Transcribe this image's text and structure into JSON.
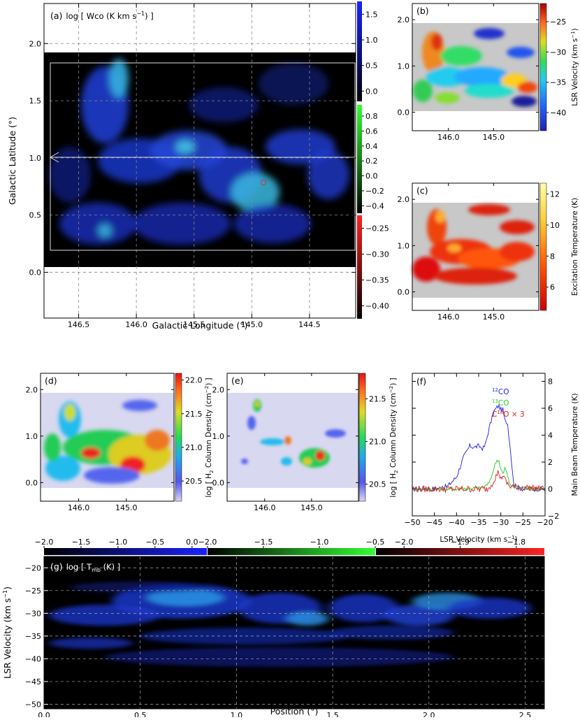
{
  "panel_a": {
    "label": "(a)",
    "quantity": "log [ Wco (K km s",
    "unit_sup": "−1",
    "unit_close": ") ]",
    "xlabel": "Galactic Longitude (°)",
    "ylabel": "Galactic Latitude (°)",
    "xticks": [
      "146.5",
      "146.0",
      "145.5",
      "145.0",
      "144.5"
    ],
    "yticks": [
      "0.0",
      "0.5",
      "1.0",
      "1.5",
      "2.0"
    ],
    "cbar_blue": [
      "1.5",
      "1.0",
      "0.5",
      "0.0"
    ],
    "cbar_green": [
      "0.8",
      "0.6",
      "0.4",
      "0.2",
      "0.0",
      "−0.2",
      "−0.4"
    ],
    "cbar_red": [
      "−0.25",
      "−0.30",
      "−0.35",
      "−0.40"
    ]
  },
  "panel_b": {
    "label": "(b)",
    "cbar_title": "LSR Velocity (km s",
    "cbar_title_sup": "−1",
    "cbar_title_close": ")",
    "cbar_ticks": [
      "−25",
      "−30",
      "−35",
      "−40"
    ],
    "xticks": [
      "146.0",
      "145.0"
    ],
    "yticks": [
      "0.0",
      "1.0",
      "2.0"
    ]
  },
  "panel_c": {
    "label": "(c)",
    "cbar_title": "Excitation Temperature (K)",
    "cbar_ticks": [
      "12",
      "10",
      "8",
      "6"
    ],
    "xticks": [
      "146.0",
      "145.0"
    ],
    "yticks": [
      "0.0",
      "1.0",
      "2.0"
    ]
  },
  "panel_d": {
    "label": "(d)",
    "cbar_title_pre": "log [ H",
    "cbar_title_sub": "2",
    "cbar_title_mid": " Column Density (cm",
    "cbar_title_sup": "−2",
    "cbar_title_close": ") ]",
    "cbar_ticks": [
      "22.0",
      "21.5",
      "21.0",
      "20.5"
    ],
    "xticks": [
      "146.0",
      "145.0"
    ],
    "yticks": [
      "0.0",
      "1.0",
      "2.0"
    ]
  },
  "panel_e": {
    "label": "(e)",
    "cbar_title_pre": "log [ H",
    "cbar_title_sub": "2",
    "cbar_title_mid": " Column Density (cm",
    "cbar_title_sup": "−2",
    "cbar_title_close": ") ]",
    "cbar_ticks": [
      "21.5",
      "21.0",
      "20.5"
    ],
    "xticks": [
      "146.0",
      "145.0"
    ],
    "yticks": [
      "0.0",
      "1.0",
      "2.0"
    ]
  },
  "panel_f": {
    "label": "(f)",
    "legend": [
      {
        "sup": "12",
        "name": "CO",
        "color": "#1f1fe0"
      },
      {
        "sup": "13",
        "name": "CO",
        "color": "#22cc22"
      },
      {
        "pre": "C",
        "sup": "18",
        "name": "O × 3",
        "color": "#e01f1f"
      }
    ],
    "xlabel": "LSR Velocity (km s",
    "xlabel_sup": "−1",
    "xlabel_close": ")",
    "ylabel": "Main Beam Temperature (K)",
    "xticks": [
      "−50",
      "−45",
      "−40",
      "−35",
      "−30",
      "−25",
      "−20"
    ],
    "yticks": [
      "−2",
      "0",
      "2",
      "4",
      "6",
      "8"
    ]
  },
  "panel_g": {
    "label": "(g)",
    "quantity_pre": "log [ T",
    "quantity_sub": "mb",
    "quantity_close": " (K) ]",
    "ylabel": "LSR Velocity (km s",
    "ylabel_sup": "−1",
    "ylabel_close": ")",
    "xlabel": "Position (°)",
    "xticks": [
      "0.0",
      "0.5",
      "1.0",
      "1.5",
      "2.0",
      "2.5"
    ],
    "yticks": [
      "−20",
      "−25",
      "−30",
      "−35",
      "−40",
      "−45",
      "−50"
    ],
    "cbar_blue": [
      "−2.0",
      "−1.5",
      "−1.0",
      "−0.5",
      "0.0"
    ],
    "cbar_green": [
      "−2.0",
      "−1.5",
      "−1.0",
      "−0.5"
    ],
    "cbar_red": [
      "−2.0",
      "−1.9",
      "−1.8"
    ]
  },
  "chart_data": [
    {
      "type": "heatmap",
      "panel": "a",
      "x_range": [
        146.8,
        144.1
      ],
      "y_range": [
        -0.4,
        2.35
      ],
      "data_coverage_lat": [
        0.05,
        1.88
      ],
      "box": {
        "l": [
          146.75,
          144.1
        ],
        "b": [
          0.1,
          1.82
        ]
      },
      "strip_lat": 1.0,
      "marker": {
        "l": 144.87,
        "b": 0.78
      }
    },
    {
      "type": "heatmap",
      "panel": "b",
      "x_range": [
        146.8,
        144.0
      ],
      "y_range": [
        -0.4,
        2.35
      ],
      "color_range": [
        -43,
        -22
      ]
    },
    {
      "type": "heatmap",
      "panel": "c",
      "x_range": [
        146.8,
        144.0
      ],
      "y_range": [
        -0.4,
        2.35
      ],
      "color_range": [
        4.5,
        12.7
      ]
    },
    {
      "type": "heatmap",
      "panel": "d",
      "x_range": [
        146.8,
        144.0
      ],
      "y_range": [
        -0.4,
        2.35
      ],
      "color_range": [
        20.2,
        22.1
      ]
    },
    {
      "type": "heatmap",
      "panel": "e",
      "x_range": [
        146.8,
        144.0
      ],
      "y_range": [
        -0.4,
        2.35
      ],
      "color_range": [
        20.3,
        21.8
      ]
    },
    {
      "type": "line",
      "panel": "f",
      "xlim": [
        -50,
        -20
      ],
      "ylim": [
        -2,
        8.6
      ],
      "series": [
        {
          "name": "12CO",
          "x": [
            -50,
            -45,
            -42,
            -40,
            -38.5,
            -37,
            -36,
            -35,
            -34,
            -33.5,
            -32.5,
            -31.5,
            -30.5,
            -30,
            -29.5,
            -29,
            -28.5,
            -28,
            -27.5,
            -27,
            -25,
            -20
          ],
          "values": [
            0,
            0,
            0.2,
            0.9,
            2.3,
            3.2,
            3.1,
            3.2,
            3.0,
            3.3,
            4.7,
            5.8,
            6.2,
            5.9,
            5.9,
            4.9,
            5.0,
            3.5,
            1.8,
            0.2,
            0,
            0
          ]
        },
        {
          "name": "13CO",
          "x": [
            -50,
            -40,
            -34,
            -32.5,
            -31.5,
            -31,
            -30.5,
            -30,
            -29.5,
            -29,
            -28.5,
            -28,
            -27,
            -20
          ],
          "values": [
            0,
            0,
            0.1,
            0.5,
            1.6,
            2.1,
            2.2,
            1.5,
            1.1,
            1.6,
            1.0,
            0.4,
            0.1,
            0
          ]
        },
        {
          "name": "C18O x 3",
          "x": [
            -50,
            -40,
            -33,
            -32,
            -31,
            -30.5,
            -30,
            -29.5,
            -29,
            -28,
            -20
          ],
          "values": [
            0,
            0,
            0,
            0.4,
            1.0,
            1.3,
            0.7,
            1.1,
            0.6,
            0.2,
            0
          ]
        }
      ]
    },
    {
      "type": "heatmap",
      "panel": "g",
      "x_range": [
        0,
        2.6
      ],
      "y_range": [
        -51,
        -17.5
      ],
      "color_blue": [
        -2.0,
        0.2
      ],
      "color_green": [
        -2.0,
        -0.5
      ],
      "color_red": [
        -2.05,
        -1.75
      ]
    }
  ]
}
